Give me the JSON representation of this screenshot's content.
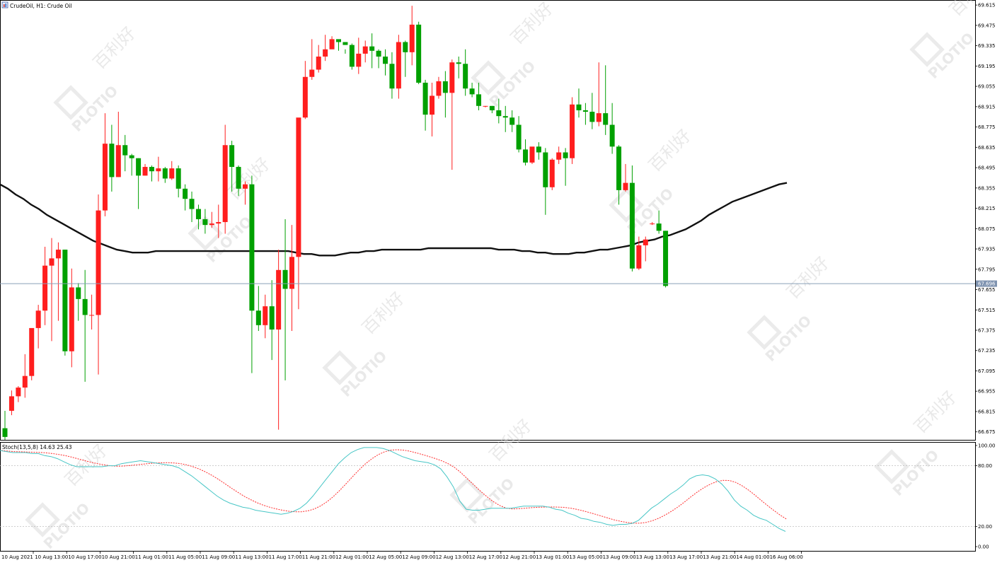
{
  "header": {
    "symbol_label": "CrudeOil, H1:  Crude Oil",
    "icon": "chart-window-icon"
  },
  "watermark": {
    "brand": "PLOTIO",
    "cn": "百利好"
  },
  "colors": {
    "bull": "#ff1e1e",
    "bear": "#00a000",
    "ma": "#111111",
    "stoch_main": "#47c6c6",
    "stoch_signal": "#ff2a2a",
    "price_line": "#8aa0b8",
    "grid": "#bdbdbd"
  },
  "chart_data": [
    {
      "type": "candlestick",
      "name": "CrudeOil H1",
      "y_ticks": [
        66.675,
        66.815,
        66.955,
        67.095,
        67.235,
        67.375,
        67.515,
        67.655,
        67.795,
        67.935,
        68.075,
        68.215,
        68.355,
        68.495,
        68.635,
        68.775,
        68.915,
        69.055,
        69.195,
        69.335,
        69.475,
        69.615
      ],
      "y_tick_labels": [
        "66.675",
        "66.815",
        "66.955",
        "67.095",
        "67.235",
        "67.375",
        "67.515",
        "67.655",
        "67.795",
        "67.935",
        "68.075",
        "68.215",
        "68.355",
        "68.495",
        "68.635",
        "68.775",
        "68.915",
        "69.055",
        "69.195",
        "69.335",
        "69.475",
        "69.615"
      ],
      "ylim": [
        66.62,
        69.64
      ],
      "current_price": 67.696,
      "current_price_label": "67.696",
      "x_tick_labels": [
        "10 Aug 2021",
        "10 Aug 13:00",
        "10 Aug 17:00",
        "10 Aug 21:00",
        "11 Aug 01:00",
        "11 Aug 05:00",
        "11 Aug 09:00",
        "11 Aug 13:00",
        "11 Aug 17:00",
        "11 Aug 21:00",
        "12 Aug 01:00",
        "12 Aug 05:00",
        "12 Aug 09:00",
        "12 Aug 13:00",
        "12 Aug 17:00",
        "12 Aug 21:00",
        "13 Aug 01:00",
        "13 Aug 05:00",
        "13 Aug 09:00",
        "13 Aug 13:00",
        "13 Aug 17:00",
        "13 Aug 21:00",
        "14 Aug 01:00",
        "16 Aug 06:00"
      ],
      "candles": [
        [
          66.7,
          66.82,
          66.64,
          66.62
        ],
        [
          66.82,
          66.96,
          66.92,
          66.79
        ],
        [
          66.92,
          66.99,
          66.98,
          66.88
        ],
        [
          66.98,
          67.21,
          67.06,
          66.91
        ],
        [
          67.06,
          67.31,
          67.39,
          67.03
        ],
        [
          67.39,
          67.55,
          67.51,
          67.25
        ],
        [
          67.51,
          67.95,
          67.82,
          67.41
        ],
        [
          67.82,
          68.01,
          67.87,
          67.3
        ],
        [
          67.87,
          67.98,
          67.93,
          67.44
        ],
        [
          67.93,
          67.93,
          67.23,
          67.2
        ],
        [
          67.23,
          67.8,
          67.67,
          67.12
        ],
        [
          67.67,
          67.7,
          67.59,
          67.44
        ],
        [
          67.59,
          67.79,
          67.48,
          67.02
        ],
        [
          67.48,
          67.62,
          67.48,
          67.38
        ],
        [
          67.48,
          68.31,
          68.2,
          67.07
        ],
        [
          68.2,
          68.87,
          68.66,
          68.16
        ],
        [
          68.66,
          68.79,
          68.43,
          68.33
        ],
        [
          68.43,
          68.88,
          68.65,
          68.43
        ],
        [
          68.65,
          68.72,
          68.58,
          68.47
        ],
        [
          68.58,
          68.59,
          68.56,
          68.44
        ],
        [
          68.56,
          68.56,
          68.44,
          68.21
        ],
        [
          68.44,
          68.52,
          68.5,
          68.44
        ],
        [
          68.5,
          68.51,
          68.47,
          68.4
        ],
        [
          68.47,
          68.57,
          68.49,
          68.4
        ],
        [
          68.49,
          68.5,
          68.42,
          68.39
        ],
        [
          68.42,
          68.54,
          68.49,
          68.41
        ],
        [
          68.49,
          68.51,
          68.35,
          68.29
        ],
        [
          68.35,
          68.38,
          68.28,
          68.2
        ],
        [
          68.28,
          68.33,
          68.21,
          68.12
        ],
        [
          68.21,
          68.24,
          68.14,
          68.07
        ],
        [
          68.14,
          68.21,
          68.1,
          68.04
        ],
        [
          68.1,
          68.19,
          68.11,
          68.08
        ],
        [
          68.11,
          68.24,
          68.12,
          68.01
        ],
        [
          68.12,
          68.79,
          68.65,
          68.04
        ],
        [
          68.65,
          68.68,
          68.5,
          68.33
        ],
        [
          68.5,
          68.51,
          68.35,
          68.3
        ],
        [
          68.35,
          68.4,
          68.38,
          68.24
        ],
        [
          68.38,
          68.44,
          67.51,
          67.08
        ],
        [
          67.51,
          67.68,
          67.41,
          67.37
        ],
        [
          67.41,
          67.62,
          67.54,
          67.32
        ],
        [
          67.54,
          67.72,
          67.38,
          67.17
        ],
        [
          67.38,
          67.93,
          67.79,
          66.69
        ],
        [
          67.79,
          68.14,
          67.66,
          67.03
        ],
        [
          67.66,
          68.1,
          67.88,
          67.37
        ],
        [
          67.88,
          68.81,
          68.84,
          67.52
        ],
        [
          68.84,
          69.23,
          69.12,
          68.83
        ],
        [
          69.12,
          69.38,
          69.17,
          69.1
        ],
        [
          69.17,
          69.34,
          69.26,
          69.15
        ],
        [
          69.26,
          69.41,
          69.31,
          69.23
        ],
        [
          69.31,
          69.4,
          69.38,
          69.33
        ],
        [
          69.38,
          69.37,
          69.36,
          69.3
        ],
        [
          69.36,
          69.31,
          69.34,
          69.28
        ],
        [
          69.34,
          69.35,
          69.19,
          69.17
        ],
        [
          69.19,
          69.39,
          69.28,
          69.14
        ],
        [
          69.28,
          69.37,
          69.33,
          69.22
        ],
        [
          69.33,
          69.42,
          69.3,
          69.18
        ],
        [
          69.3,
          69.31,
          69.26,
          69.18
        ],
        [
          69.26,
          69.31,
          69.21,
          69.13
        ],
        [
          69.21,
          69.29,
          69.04,
          68.97
        ],
        [
          69.04,
          69.41,
          69.36,
          68.97
        ],
        [
          69.36,
          69.37,
          69.29,
          69.12
        ],
        [
          69.29,
          69.61,
          69.48,
          69.2
        ],
        [
          69.48,
          69.5,
          69.08,
          69.07
        ],
        [
          69.08,
          69.1,
          68.86,
          68.75
        ],
        [
          68.86,
          69.08,
          68.99,
          68.71
        ],
        [
          68.99,
          69.12,
          69.09,
          68.97
        ],
        [
          69.09,
          69.16,
          69.01,
          68.84
        ],
        [
          69.01,
          69.24,
          69.22,
          68.48
        ],
        [
          69.22,
          69.26,
          69.21,
          69.11
        ],
        [
          69.21,
          69.31,
          69.04,
          68.99
        ],
        [
          69.04,
          69.08,
          69.0,
          68.98
        ],
        [
          69.0,
          69.08,
          68.92,
          68.89
        ],
        [
          68.92,
          68.92,
          68.92,
          68.91
        ],
        [
          68.92,
          68.92,
          68.89,
          68.87
        ],
        [
          68.89,
          68.97,
          68.85,
          68.8
        ],
        [
          68.85,
          68.92,
          68.84,
          68.74
        ],
        [
          68.84,
          68.89,
          68.79,
          68.74
        ],
        [
          68.79,
          68.85,
          68.62,
          68.6
        ],
        [
          68.62,
          68.69,
          68.53,
          68.51
        ],
        [
          68.53,
          68.63,
          68.64,
          68.52
        ],
        [
          68.64,
          68.67,
          68.6,
          68.55
        ],
        [
          68.6,
          68.63,
          68.36,
          68.17
        ],
        [
          68.36,
          68.56,
          68.55,
          68.34
        ],
        [
          68.55,
          68.64,
          68.6,
          68.52
        ],
        [
          68.6,
          68.63,
          68.56,
          68.37
        ],
        [
          68.56,
          68.98,
          68.93,
          68.52
        ],
        [
          68.93,
          69.04,
          68.89,
          68.84
        ],
        [
          68.89,
          68.94,
          68.88,
          68.79
        ],
        [
          68.88,
          69.01,
          68.81,
          68.76
        ],
        [
          68.81,
          69.22,
          68.87,
          68.78
        ],
        [
          68.87,
          69.2,
          68.79,
          68.72
        ],
        [
          68.79,
          68.94,
          68.64,
          68.59
        ],
        [
          68.64,
          68.65,
          68.34,
          68.24
        ],
        [
          68.34,
          68.52,
          68.39,
          68.33
        ],
        [
          68.39,
          68.51,
          67.8,
          67.78
        ],
        [
          67.8,
          68.02,
          67.96,
          67.79
        ],
        [
          67.96,
          68.02,
          68.0,
          67.85
        ],
        [
          68.11,
          68.12,
          68.11,
          68.1
        ],
        [
          68.11,
          68.2,
          68.06,
          68.04
        ],
        [
          68.06,
          68.06,
          67.68,
          67.67
        ]
      ],
      "moving_average": [
        68.38,
        68.35,
        68.31,
        68.28,
        68.24,
        68.21,
        68.17,
        68.14,
        68.11,
        68.08,
        68.05,
        68.02,
        67.99,
        67.97,
        67.95,
        67.93,
        67.92,
        67.91,
        67.91,
        67.91,
        67.92,
        67.92,
        67.92,
        67.92,
        67.92,
        67.92,
        67.92,
        67.92,
        67.92,
        67.92,
        67.92,
        67.92,
        67.92,
        67.92,
        67.92,
        67.92,
        67.92,
        67.92,
        67.91,
        67.9,
        67.9,
        67.89,
        67.89,
        67.89,
        67.9,
        67.91,
        67.91,
        67.92,
        67.92,
        67.93,
        67.93,
        67.93,
        67.93,
        67.93,
        67.93,
        67.94,
        67.94,
        67.94,
        67.94,
        67.94,
        67.94,
        67.94,
        67.94,
        67.94,
        67.93,
        67.93,
        67.93,
        67.92,
        67.92,
        67.91,
        67.91,
        67.9,
        67.9,
        67.9,
        67.91,
        67.91,
        67.92,
        67.93,
        67.93,
        67.94,
        67.95,
        67.96,
        67.98,
        67.99,
        68.0,
        68.02,
        68.03,
        68.05,
        68.07,
        68.1,
        68.13,
        68.17,
        68.2,
        68.23,
        68.26,
        68.28,
        68.3,
        68.32,
        68.34,
        68.36,
        68.38,
        68.39
      ]
    },
    {
      "type": "line",
      "name": "Stoch(13,5,8) 14.63 25.43",
      "ylim": [
        0,
        100
      ],
      "y_ticks": [
        0,
        20,
        80,
        100
      ],
      "y_tick_labels": [
        "0.00",
        "20.00",
        "80.00",
        "100.00"
      ],
      "levels": [
        20,
        80
      ],
      "main": [
        95,
        94,
        93,
        93,
        93,
        92,
        92,
        90,
        89,
        87,
        84,
        81,
        79,
        79,
        79,
        79,
        79,
        80,
        80,
        82,
        83,
        84,
        85,
        84,
        83,
        82,
        81,
        80,
        78,
        74,
        70,
        65,
        60,
        55,
        50,
        46,
        43,
        41,
        39,
        38,
        36,
        35,
        34,
        33,
        32,
        33,
        35,
        38,
        43,
        50,
        58,
        66,
        74,
        82,
        88,
        93,
        96,
        98,
        98,
        98,
        97,
        95,
        92,
        89,
        87,
        85,
        84,
        83,
        81,
        77,
        69,
        59,
        45,
        37,
        36,
        36,
        37,
        38,
        38,
        38,
        38,
        39,
        40,
        40,
        40,
        40,
        39,
        37,
        36,
        33,
        31,
        28,
        27,
        25,
        24,
        22,
        21,
        22,
        22,
        23,
        26,
        32,
        38,
        42,
        47,
        52,
        56,
        61,
        67,
        70,
        71,
        70,
        67,
        62,
        55,
        46,
        40,
        36,
        31,
        28,
        26,
        22,
        18,
        15
      ]
    }
  ]
}
